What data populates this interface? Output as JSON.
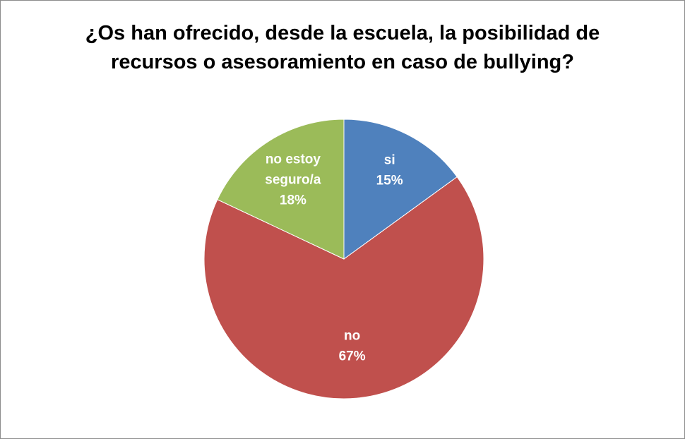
{
  "chart_data": {
    "type": "pie",
    "title_lines": [
      "¿Os han ofrecido, desde la escuela, la posibilidad de",
      "recursos o asesoramiento en caso de bullying?"
    ],
    "categories": [
      "si",
      "no",
      "no estoy seguro/a"
    ],
    "values": [
      15,
      67,
      18
    ],
    "unit": "%",
    "colors": [
      "#4f81bd",
      "#c0504d",
      "#9bbb59"
    ],
    "label_lines": [
      [
        "si",
        "15%"
      ],
      [
        "no",
        "67%"
      ],
      [
        "no estoy",
        "seguro/a",
        "18%"
      ]
    ],
    "start": "12 o'clock",
    "direction": "clockwise",
    "legend": "none"
  }
}
